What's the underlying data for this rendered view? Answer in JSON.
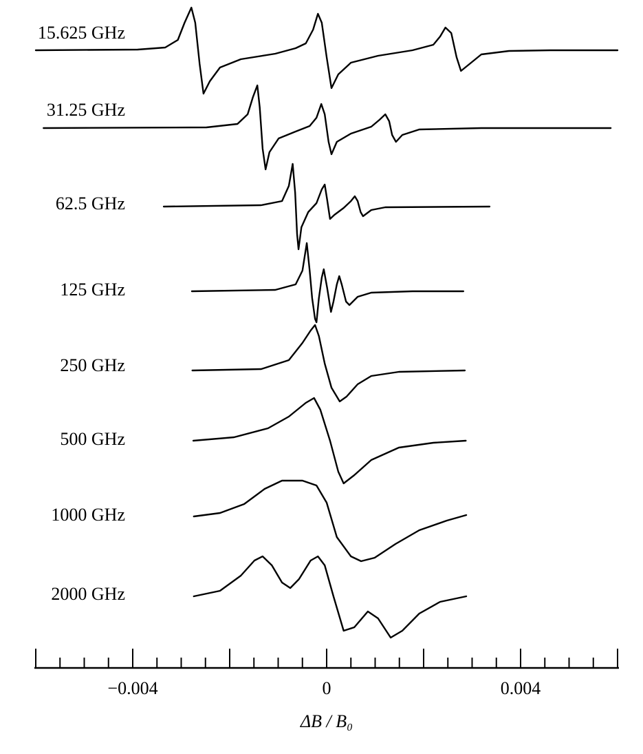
{
  "chart_data": {
    "type": "line",
    "x_label": "ΔB / B₀",
    "xlim": [
      -0.006,
      0.006
    ],
    "xticks": [
      {
        "value": -0.004,
        "label": "−0.004"
      },
      0,
      0.004
    ],
    "minor_xticks": [
      -0.006,
      -0.0055,
      -0.005,
      -0.0045,
      -0.004,
      -0.0035,
      -0.003,
      -0.0025,
      -0.002,
      -0.0015,
      -0.001,
      -0.0005,
      0,
      0.0005,
      0.001,
      0.0015,
      0.002,
      0.0025,
      0.003,
      0.0035,
      0.004,
      0.0045,
      0.005,
      0.0055,
      0.006
    ],
    "series": [
      {
        "name": "15.625 GHz",
        "color": "#000000",
        "x": [
          -0.006,
          -0.0039,
          -0.00333,
          -0.00307,
          -0.00293,
          -0.00279,
          -0.00271,
          -0.00262,
          -0.00254,
          -0.00241,
          -0.0022,
          -0.00177,
          -0.00106,
          -0.00064,
          -0.00043,
          -0.00028,
          -0.00018,
          -0.0001,
          0,
          0.0001,
          0.00024,
          0.0005,
          0.00106,
          0.00177,
          0.0022,
          0.00234,
          0.00245,
          0.00257,
          0.00268,
          0.00277,
          0.00291,
          0.00319,
          0.00376,
          0.00461,
          0.006
        ],
        "values": [
          0,
          1,
          4,
          15,
          40,
          62,
          40,
          -20,
          -63,
          -45,
          -25,
          -13,
          -5,
          3,
          10,
          30,
          53,
          40,
          -10,
          -55,
          -35,
          -18,
          -8,
          0,
          8,
          20,
          33,
          25,
          -10,
          -30,
          -22,
          -6,
          -1,
          0,
          0
        ]
      },
      {
        "name": "31.25 GHz",
        "color": "#000000",
        "x": [
          -0.00584,
          -0.00248,
          -0.00184,
          -0.00163,
          -0.00152,
          -0.00143,
          -0.00138,
          -0.00132,
          -0.00126,
          -0.00118,
          -0.00099,
          -0.00064,
          -0.00035,
          -0.00021,
          -0.00011,
          -4e-05,
          4e-05,
          0.0001,
          0.00021,
          0.0005,
          0.00092,
          0.00109,
          0.00121,
          0.00129,
          0.00135,
          0.00143,
          0.00156,
          0.00191,
          0.00319,
          0.00586
        ],
        "values": [
          0,
          1,
          6,
          20,
          45,
          62,
          30,
          -30,
          -60,
          -35,
          -15,
          -5,
          3,
          15,
          35,
          20,
          -20,
          -38,
          -20,
          -8,
          2,
          12,
          20,
          10,
          -10,
          -20,
          -10,
          -2,
          0,
          0
        ]
      },
      {
        "name": "62.5 GHz",
        "color": "#000000",
        "x": [
          -0.00336,
          -0.00135,
          -0.00092,
          -0.00078,
          -0.0007,
          -0.00065,
          -0.00061,
          -0.00058,
          -0.00052,
          -0.00038,
          -0.00021,
          -0.0001,
          -4e-05,
          1e-05,
          7e-05,
          0.00016,
          0.00035,
          0.0005,
          0.00058,
          0.00064,
          0.0007,
          0.00075,
          0.00092,
          0.00121,
          0.00336
        ],
        "values": [
          0,
          2,
          8,
          30,
          62,
          20,
          -40,
          -62,
          -30,
          -8,
          5,
          25,
          32,
          10,
          -18,
          -12,
          -2,
          8,
          15,
          8,
          -8,
          -14,
          -5,
          -1,
          0
        ]
      },
      {
        "name": "125 GHz",
        "color": "#000000",
        "x": [
          -0.00278,
          -0.00106,
          -0.00064,
          -0.0005,
          -0.00041,
          -0.00035,
          -0.0003,
          -0.00024,
          -0.00021,
          -0.00016,
          -0.0001,
          -6e-05,
          1e-05,
          9e-05,
          0.00014,
          0.00021,
          0.00026,
          0.00031,
          0.0004,
          0.00047,
          0.00064,
          0.00092,
          0.00177,
          0.00282
        ],
        "values": [
          0,
          2,
          10,
          30,
          70,
          30,
          -10,
          -40,
          -45,
          -10,
          20,
          32,
          5,
          -30,
          -15,
          10,
          22,
          10,
          -15,
          -20,
          -8,
          -2,
          0,
          0
        ]
      },
      {
        "name": "250 GHz",
        "color": "#000000",
        "x": [
          -0.00277,
          -0.00135,
          -0.00078,
          -0.0005,
          -0.00033,
          -0.00024,
          -0.00016,
          -4e-05,
          0.0001,
          0.00027,
          0.00041,
          0.00064,
          0.00092,
          0.00149,
          0.00285
        ],
        "values": [
          0,
          2,
          15,
          40,
          58,
          66,
          50,
          10,
          -25,
          -45,
          -38,
          -20,
          -8,
          -2,
          0
        ]
      },
      {
        "name": "500 GHz",
        "color": "#000000",
        "x": [
          -0.00275,
          -0.00191,
          -0.00121,
          -0.00078,
          -0.00043,
          -0.00026,
          -0.00013,
          7e-05,
          0.00024,
          0.00035,
          0.00057,
          0.00092,
          0.00149,
          0.0022,
          0.00287
        ],
        "values": [
          0,
          5,
          18,
          35,
          55,
          62,
          45,
          0,
          -45,
          -62,
          -50,
          -28,
          -10,
          -3,
          0
        ]
      },
      {
        "name": "1000 GHz",
        "color": "#000000",
        "x": [
          -0.00274,
          -0.0022,
          -0.0017,
          -0.00128,
          -0.00092,
          -0.0005,
          -0.00021,
          0,
          0.00021,
          0.0005,
          0.00071,
          0.00099,
          0.00142,
          0.00191,
          0.00248,
          0.00288
        ],
        "values": [
          0,
          5,
          18,
          40,
          52,
          52,
          45,
          20,
          -30,
          -58,
          -65,
          -60,
          -40,
          -20,
          -6,
          2
        ]
      },
      {
        "name": "2000 GHz",
        "color": "#000000",
        "x": [
          -0.00274,
          -0.0022,
          -0.00177,
          -0.00149,
          -0.00132,
          -0.00113,
          -0.00092,
          -0.00075,
          -0.00057,
          -0.00033,
          -0.00018,
          -4e-05,
          0.00014,
          0.00035,
          0.00057,
          0.00085,
          0.00106,
          0.00132,
          0.00156,
          0.00191,
          0.00234,
          0.00288
        ],
        "values": [
          0,
          8,
          30,
          52,
          58,
          45,
          20,
          12,
          25,
          52,
          58,
          45,
          0,
          -50,
          -45,
          -22,
          -32,
          -60,
          -50,
          -25,
          -8,
          0
        ]
      }
    ]
  }
}
